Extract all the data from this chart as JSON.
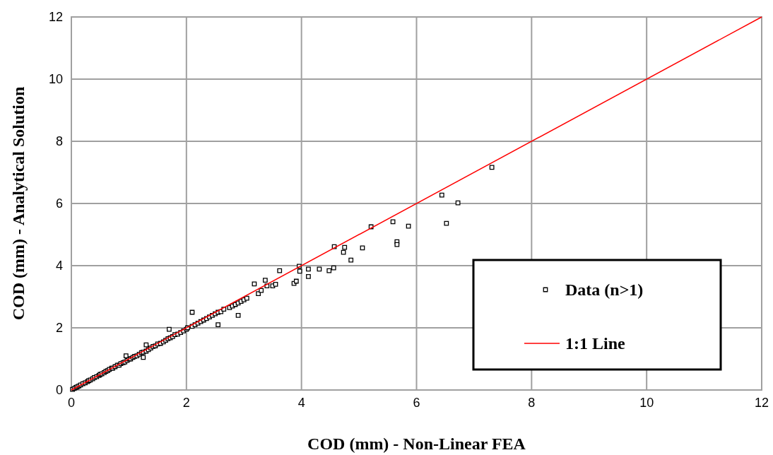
{
  "chart_data": {
    "type": "scatter",
    "xlabel": "COD (mm) - Non-Linear FEA",
    "ylabel": "COD (mm) - Analytical Solution",
    "xlim": [
      0,
      12
    ],
    "ylim": [
      0,
      12
    ],
    "xticks": [
      0,
      2,
      4,
      6,
      8,
      10,
      12
    ],
    "yticks": [
      0,
      2,
      4,
      6,
      8,
      10,
      12
    ],
    "grid": true,
    "legend": "bottom right",
    "series": [
      {
        "name": "Data (n>1)",
        "marker": "square",
        "color": "#000000",
        "x": [
          0.02,
          0.05,
          0.08,
          0.1,
          0.13,
          0.16,
          0.2,
          0.24,
          0.28,
          0.3,
          0.33,
          0.37,
          0.4,
          0.44,
          0.48,
          0.5,
          0.53,
          0.57,
          0.6,
          0.63,
          0.66,
          0.7,
          0.72,
          0.76,
          0.8,
          0.83,
          0.86,
          0.9,
          0.93,
          0.97,
          1.0,
          1.03,
          1.07,
          1.1,
          1.14,
          1.18,
          1.22,
          1.25,
          1.3,
          1.34,
          1.38,
          1.42,
          1.46,
          1.5,
          1.55,
          1.6,
          1.64,
          1.68,
          1.72,
          1.76,
          1.8,
          1.85,
          1.9,
          1.95,
          2.0,
          2.02,
          2.1,
          2.15,
          2.2,
          2.25,
          2.3,
          2.35,
          2.4,
          2.45,
          2.5,
          2.55,
          2.6,
          2.65,
          2.75,
          2.8,
          2.85,
          2.9,
          2.95,
          3.0,
          3.05,
          3.18,
          3.25,
          3.3,
          3.37,
          3.4,
          3.5,
          3.55,
          3.62,
          3.87,
          3.91,
          3.96,
          3.97,
          4.12,
          4.12,
          4.31,
          4.48,
          4.56,
          4.57,
          4.73,
          4.75,
          4.86,
          5.06,
          5.21,
          5.59,
          5.66,
          5.66,
          5.86,
          6.44,
          6.52,
          6.72,
          7.31,
          1.25,
          1.7,
          2.1,
          2.55,
          2.9,
          0.95,
          1.3
        ],
        "values": [
          0.02,
          0.05,
          0.08,
          0.1,
          0.13,
          0.16,
          0.2,
          0.23,
          0.27,
          0.3,
          0.32,
          0.36,
          0.4,
          0.43,
          0.47,
          0.5,
          0.52,
          0.56,
          0.6,
          0.62,
          0.66,
          0.7,
          0.7,
          0.75,
          0.8,
          0.8,
          0.85,
          0.88,
          0.9,
          0.95,
          1.0,
          1.0,
          1.05,
          1.08,
          1.1,
          1.15,
          1.2,
          1.22,
          1.25,
          1.3,
          1.35,
          1.4,
          1.42,
          1.48,
          1.5,
          1.55,
          1.6,
          1.65,
          1.68,
          1.72,
          1.78,
          1.8,
          1.85,
          1.9,
          1.95,
          2.0,
          2.05,
          2.1,
          2.15,
          2.2,
          2.25,
          2.3,
          2.35,
          2.4,
          2.45,
          2.5,
          2.52,
          2.6,
          2.65,
          2.7,
          2.75,
          2.8,
          2.85,
          2.9,
          2.95,
          3.41,
          3.1,
          3.2,
          3.53,
          3.35,
          3.35,
          3.4,
          3.84,
          3.43,
          3.5,
          3.98,
          3.82,
          3.89,
          3.65,
          3.89,
          3.84,
          3.93,
          4.61,
          4.43,
          4.59,
          4.18,
          4.57,
          5.25,
          5.41,
          4.77,
          4.68,
          5.27,
          6.27,
          5.36,
          6.02,
          7.16,
          1.05,
          1.95,
          2.5,
          2.1,
          2.4,
          1.1,
          1.45
        ]
      },
      {
        "name": "1:1 Line",
        "type": "line",
        "color": "#ff0000",
        "x": [
          0,
          12
        ],
        "values": [
          0,
          12
        ]
      }
    ]
  }
}
